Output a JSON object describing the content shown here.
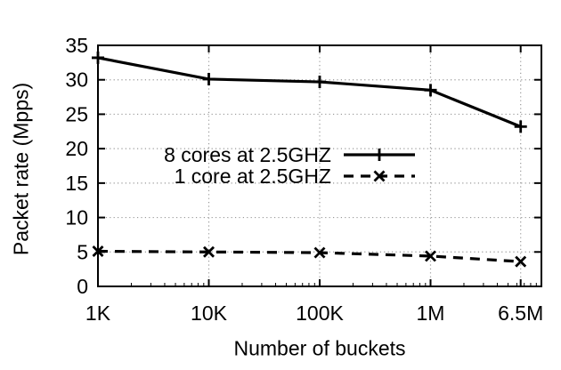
{
  "chart_data": {
    "type": "line",
    "title": "",
    "xlabel": "Number of buckets",
    "ylabel": "Packet rate (Mpps)",
    "x_scale": "log",
    "x_range": [
      1000,
      10000000
    ],
    "x_ticks": [
      {
        "label": "1K",
        "value": 1000
      },
      {
        "label": "10K",
        "value": 10000
      },
      {
        "label": "100K",
        "value": 100000
      },
      {
        "label": "1M",
        "value": 1000000
      },
      {
        "label": "6.5M",
        "value": 6500000
      }
    ],
    "y_range": [
      0,
      35
    ],
    "y_ticks": [
      0,
      5,
      10,
      15,
      20,
      25,
      30,
      35
    ],
    "grid": true,
    "legend_position": "inside-center-left",
    "series": [
      {
        "name": "8 cores at 2.5GHZ",
        "line": "solid",
        "marker": "plus",
        "x": [
          1000,
          10000,
          100000,
          1000000,
          6500000
        ],
        "values": [
          33.2,
          30.1,
          29.7,
          28.5,
          23.2
        ]
      },
      {
        "name": "1 core at 2.5GHZ",
        "line": "dashed",
        "marker": "cross",
        "x": [
          1000,
          10000,
          100000,
          1000000,
          6500000
        ],
        "values": [
          5.1,
          5.0,
          4.9,
          4.4,
          3.6
        ]
      }
    ]
  },
  "colors": {
    "line": "#000000",
    "grid": "#999999",
    "background": "#ffffff",
    "text": "#000000"
  }
}
